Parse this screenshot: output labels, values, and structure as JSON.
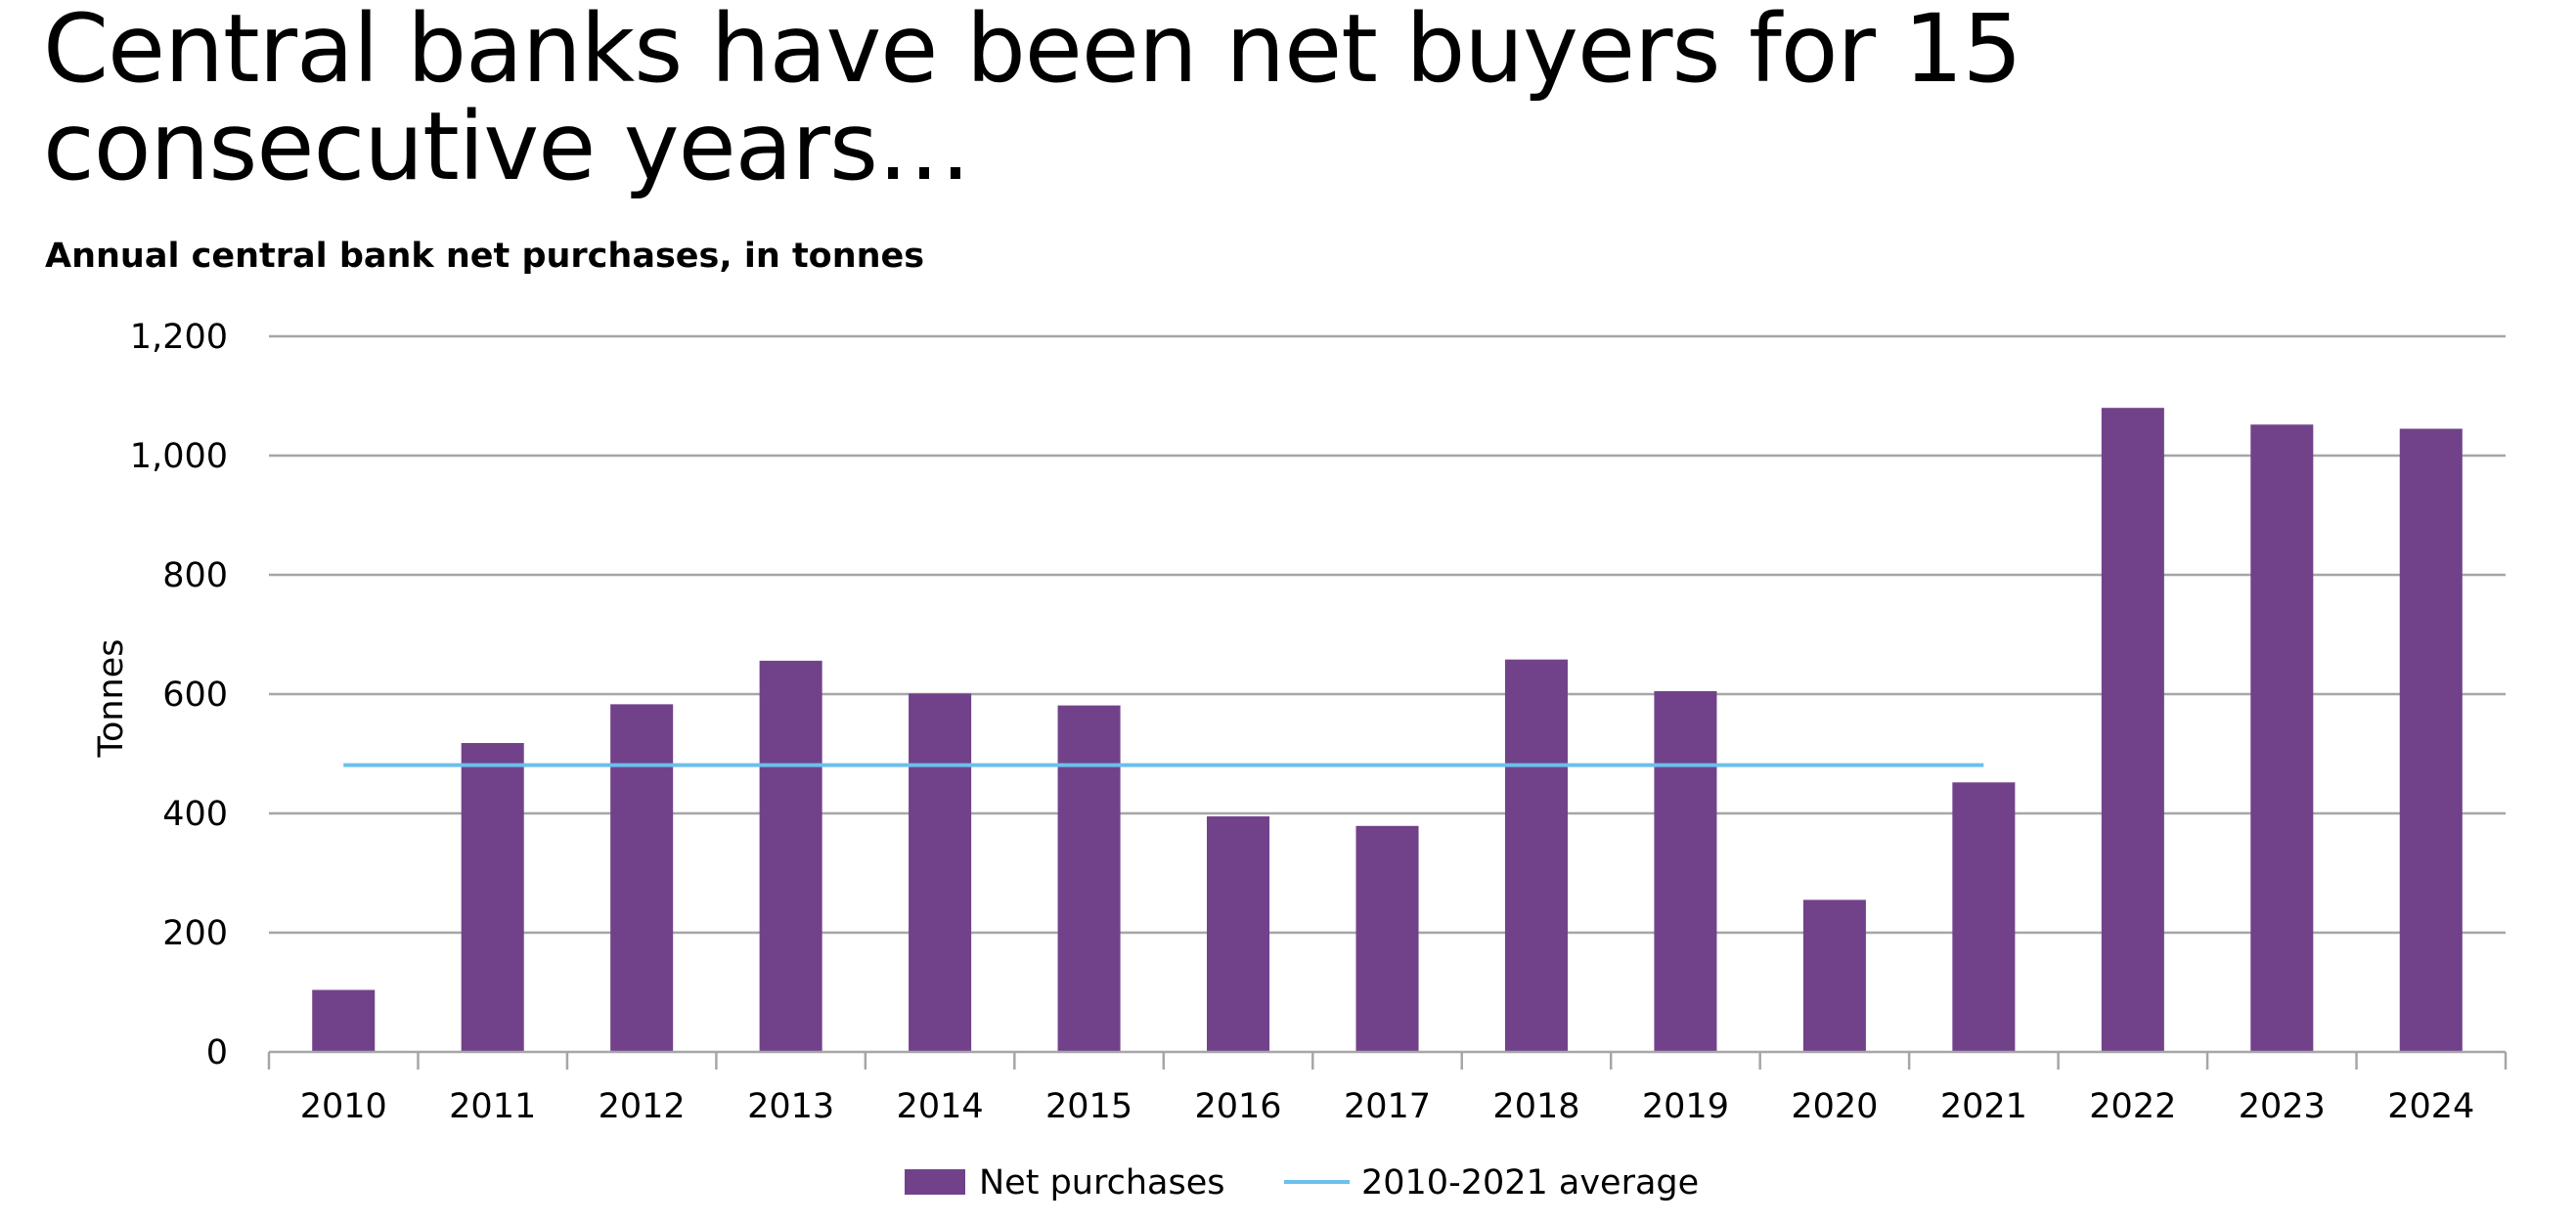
{
  "chart_data": {
    "type": "bar",
    "title": "Central banks have been net buyers for 15 consecutive years…",
    "subtitle": "Annual central bank net purchases, in tonnes",
    "xlabel": "",
    "ylabel": "Tonnes",
    "categories": [
      "2010",
      "2011",
      "2012",
      "2013",
      "2014",
      "2015",
      "2016",
      "2017",
      "2018",
      "2019",
      "2020",
      "2021",
      "2022",
      "2023",
      "2024"
    ],
    "series": [
      {
        "name": "Net purchases",
        "type": "bar",
        "color": "#71428a",
        "values": [
          104,
          518,
          583,
          656,
          601,
          581,
          395,
          379,
          658,
          605,
          255,
          452,
          1080,
          1052,
          1045
        ]
      },
      {
        "name": "2010-2021 average",
        "type": "line",
        "color": "#6cc0ed",
        "x_range": [
          "2010",
          "2021"
        ],
        "value": 481
      }
    ],
    "ylim": [
      0,
      1200
    ],
    "yticks": [
      0,
      200,
      400,
      600,
      800,
      1000,
      1200
    ],
    "ytick_labels": [
      "0",
      "200",
      "400",
      "600",
      "800",
      "1,000",
      "1,200"
    ],
    "grid": true,
    "legend_position": "bottom-center"
  }
}
